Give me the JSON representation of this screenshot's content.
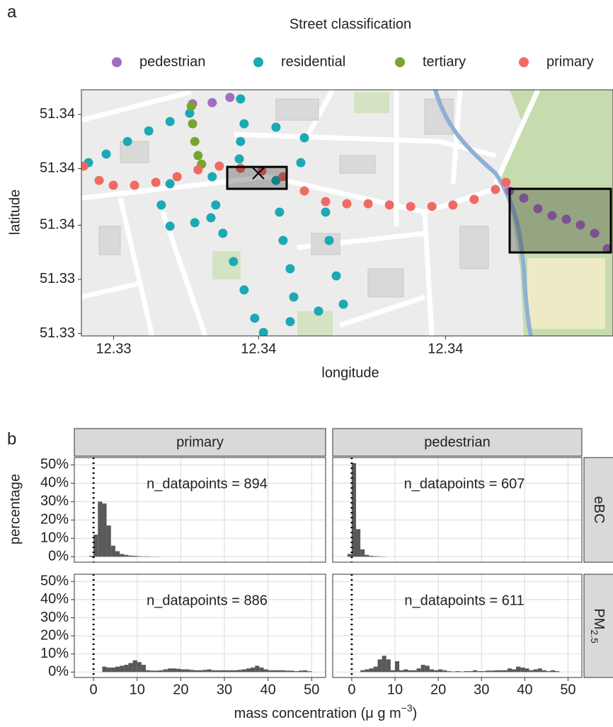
{
  "chart_data": [
    {
      "type": "scatter",
      "panel_label": "a",
      "legend_title": "Street classification",
      "x_label": "longitude",
      "y_label": "latitude",
      "xlim": [
        12.331,
        12.3475
      ],
      "ylim": [
        51.3325,
        51.3425
      ],
      "xticks": [
        {
          "value": 12.332,
          "label": "12.33"
        },
        {
          "value": 12.3365,
          "label": "12.34"
        },
        {
          "value": 12.3423,
          "label": "12.34"
        }
      ],
      "yticks": [
        {
          "value": 51.3326,
          "label": "51.33"
        },
        {
          "value": 51.3348,
          "label": "51.33"
        },
        {
          "value": 51.337,
          "label": "51.34"
        },
        {
          "value": 51.3393,
          "label": "51.34"
        },
        {
          "value": 51.3415,
          "label": "51.34"
        }
      ],
      "series": [
        {
          "name": "pedestrian",
          "color": "#a46cc0",
          "x": [
            12.33445,
            12.33506,
            12.33561,
            12.34429,
            12.34473,
            12.34517,
            12.34561,
            12.34605,
            12.34649,
            12.34693,
            12.34732
          ],
          "y": [
            51.34193,
            51.34198,
            51.34219,
            51.33839,
            51.3381,
            51.33767,
            51.33739,
            51.33724,
            51.33701,
            51.33667,
            51.33604
          ]
        },
        {
          "name": "residential",
          "color": "#1ba9b5",
          "x": [
            12.33122,
            12.33177,
            12.33243,
            12.33309,
            12.33375,
            12.33436,
            12.33506,
            12.33517,
            12.33539,
            12.33572,
            12.33605,
            12.33638,
            12.33665,
            12.33748,
            12.33836,
            12.33913,
            12.33891,
            12.33869,
            12.33858,
            12.33704,
            12.33715,
            12.33726,
            12.33748,
            12.33759,
            12.33375,
            12.33348,
            12.33375,
            12.33452,
            12.33502,
            12.33594,
            12.33605,
            12.33704,
            12.33792,
            12.33781,
            12.33594,
            12.3359
          ],
          "y": [
            51.33954,
            51.33989,
            51.3404,
            51.34083,
            51.34121,
            51.34155,
            51.33897,
            51.33782,
            51.33667,
            51.33552,
            51.33437,
            51.33322,
            51.33264,
            51.33308,
            51.33351,
            51.33379,
            51.33494,
            51.33638,
            51.33753,
            51.33882,
            51.33753,
            51.33638,
            51.33523,
            51.33408,
            51.33868,
            51.33782,
            51.33696,
            51.3371,
            51.3373,
            51.34213,
            51.34112,
            51.34098,
            51.34055,
            51.33954,
            51.3404,
            51.33969
          ]
        },
        {
          "name": "tertiary",
          "color": "#7aa52c",
          "x": [
            12.33441,
            12.33445,
            12.33452,
            12.33462,
            12.33473
          ],
          "y": [
            51.34184,
            51.34112,
            51.3404,
            51.33983,
            51.33948
          ]
        },
        {
          "name": "primary",
          "color": "#ef6a63",
          "x": [
            12.33107,
            12.33155,
            12.33199,
            12.33265,
            12.33331,
            12.33397,
            12.33462,
            12.33528,
            12.33594,
            12.3366,
            12.33726,
            12.33792,
            12.33858,
            12.33924,
            12.3399,
            12.34056,
            12.34122,
            12.34188,
            12.34253,
            12.34319,
            12.34385,
            12.34418
          ],
          "y": [
            51.3394,
            51.33882,
            51.33862,
            51.33862,
            51.33874,
            51.33897,
            51.33925,
            51.3394,
            51.33931,
            51.3392,
            51.33897,
            51.33839,
            51.33796,
            51.33787,
            51.33787,
            51.33782,
            51.33776,
            51.33776,
            51.33782,
            51.33805,
            51.33845,
            51.33874
          ]
        }
      ]
    },
    {
      "type": "histogram",
      "panel_label": "b",
      "y_label": "percentage",
      "x_label_parts": [
        "mass concentration (μ g m",
        "−3",
        ")"
      ],
      "column_labels": [
        "primary",
        "pedestrian"
      ],
      "row_labels": [
        {
          "main": "eBC"
        },
        {
          "main": "PM",
          "sub": "2.5"
        }
      ],
      "xlim": [
        -4.4,
        53.2
      ],
      "ylim": [
        -3,
        54
      ],
      "xticks": [
        0,
        10,
        20,
        30,
        40,
        50
      ],
      "yticks": [
        {
          "value": 0,
          "label": "0%"
        },
        {
          "value": 10,
          "label": "10%"
        },
        {
          "value": 20,
          "label": "20%"
        },
        {
          "value": 30,
          "label": "30%"
        },
        {
          "value": 40,
          "label": "40%"
        },
        {
          "value": 50,
          "label": "50%"
        }
      ],
      "vline": 0,
      "color": "#595959",
      "bins": [
        -1,
        0,
        1,
        2,
        3,
        4,
        5,
        6,
        7,
        8,
        9,
        10,
        11,
        12,
        13,
        14,
        15,
        16,
        17,
        18,
        19,
        20,
        21,
        22,
        23,
        24,
        25,
        26,
        27,
        28,
        29,
        30,
        31,
        32,
        33,
        34,
        35,
        36,
        37,
        38,
        39,
        40,
        41,
        42,
        43,
        44,
        45,
        46,
        47,
        48,
        49,
        50
      ],
      "panels": [
        {
          "col": 0,
          "row": 0,
          "annotation": "n_datapoints = 894",
          "values": [
            0.5,
            12,
            30,
            29,
            17,
            6,
            3,
            1.5,
            1,
            0.6,
            0.5,
            0.3,
            0.2,
            0.2,
            0.1,
            0.1,
            0,
            0,
            0,
            0,
            0,
            0,
            0,
            0,
            0,
            0,
            0,
            0,
            0,
            0,
            0,
            0,
            0,
            0,
            0,
            0,
            0,
            0,
            0,
            0,
            0,
            0,
            0,
            0,
            0,
            0,
            0,
            0,
            0,
            0,
            0
          ]
        },
        {
          "col": 1,
          "row": 0,
          "annotation": "n_datapoints = 607",
          "values": [
            1.5,
            51,
            15,
            4,
            1,
            0.5,
            0.3,
            0.2,
            0.1,
            0,
            0,
            0,
            0,
            0,
            0,
            0,
            0,
            0,
            0,
            0,
            0,
            0,
            0,
            0,
            0,
            0,
            0,
            0,
            0,
            0,
            0,
            0,
            0,
            0,
            0,
            0,
            0,
            0,
            0,
            0,
            0,
            0,
            0,
            0,
            0,
            0,
            0,
            0,
            0,
            0,
            0
          ]
        },
        {
          "col": 0,
          "row": 1,
          "annotation": "n_datapoints = 886",
          "values": [
            0,
            0,
            0,
            3,
            2.5,
            2.5,
            3,
            3.5,
            4,
            5,
            6.5,
            5.5,
            4,
            1,
            0.8,
            0.8,
            1,
            1.5,
            2,
            2,
            1.8,
            1.5,
            1.5,
            1.2,
            1,
            1,
            1.2,
            1.5,
            1,
            1,
            1,
            1,
            1,
            1,
            1.2,
            1.5,
            2,
            2.5,
            3.5,
            2.5,
            1.5,
            1,
            1,
            1,
            1,
            0.8,
            0.8,
            0.5,
            0.8,
            1,
            0.5
          ]
        },
        {
          "col": 1,
          "row": 1,
          "annotation": "n_datapoints = 611",
          "values": [
            0,
            0,
            0,
            1,
            1.5,
            2,
            3,
            7,
            9,
            7,
            1,
            6,
            1,
            1.5,
            1,
            1,
            2,
            4,
            3.5,
            1.5,
            1,
            1.5,
            1,
            0.5,
            0.3,
            0.5,
            0.3,
            0.5,
            0.5,
            1,
            0.5,
            0.5,
            0.8,
            0.8,
            1,
            1,
            1,
            2,
            1.5,
            3,
            2.5,
            2,
            1,
            1.5,
            2,
            1,
            0.5,
            1,
            0.5,
            0,
            0
          ]
        }
      ]
    }
  ]
}
